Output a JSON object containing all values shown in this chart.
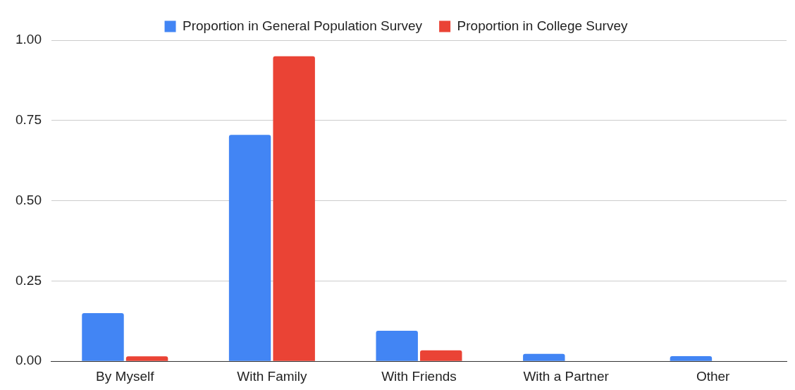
{
  "chart_data": {
    "type": "bar",
    "categories": [
      "By Myself",
      "With Family",
      "With Friends",
      "With a Partner",
      "Other"
    ],
    "series": [
      {
        "name": "Proportion in General Population Survey",
        "color": "#4285f4",
        "values": [
          0.15,
          0.705,
          0.095,
          0.023,
          0.016
        ]
      },
      {
        "name": "Proportion in College Survey",
        "color": "#ea4335",
        "values": [
          0.015,
          0.95,
          0.034,
          0,
          0
        ]
      }
    ],
    "ylim": [
      0,
      1
    ],
    "yticks": [
      {
        "value": 0,
        "label": "0.00"
      },
      {
        "value": 0.25,
        "label": "0.25"
      },
      {
        "value": 0.5,
        "label": "0.50"
      },
      {
        "value": 0.75,
        "label": "0.75"
      },
      {
        "value": 1,
        "label": "1.00"
      }
    ],
    "grid": "y",
    "legend": "top"
  }
}
